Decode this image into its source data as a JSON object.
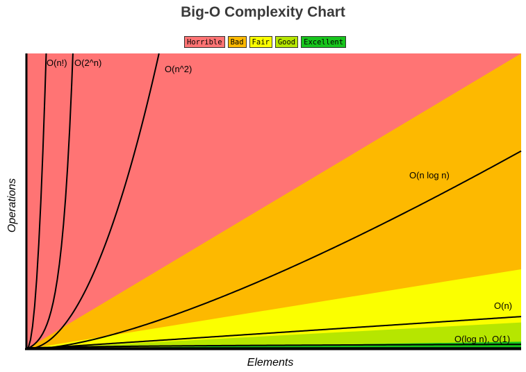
{
  "chart_data": {
    "type": "area",
    "title": "Big-O Complexity Chart",
    "xlabel": "Elements",
    "ylabel": "Operations",
    "legend_position": "top-center",
    "grid": false,
    "legend": [
      {
        "label": "Horrible",
        "color": "#ff7474"
      },
      {
        "label": "Bad",
        "color": "#fdb900"
      },
      {
        "label": "Fair",
        "color": "#fbff00"
      },
      {
        "label": "Good",
        "color": "#b6e600"
      },
      {
        "label": "Excellent",
        "color": "#17c41c"
      }
    ],
    "zones": [
      {
        "name": "Horrible",
        "color": "#ff7474",
        "upper_slope": null
      },
      {
        "name": "Bad",
        "color": "#fdb900",
        "upper_slope": 1.0
      },
      {
        "name": "Fair",
        "color": "#fbff00",
        "upper_slope": 0.27
      },
      {
        "name": "Good",
        "color": "#b6e600",
        "upper_slope": 0.09
      },
      {
        "name": "Excellent",
        "color": "#17c41c",
        "upper_slope": 0.025
      }
    ],
    "curves": [
      {
        "name": "O(1)",
        "label": "",
        "func": "constant"
      },
      {
        "name": "O(log n)",
        "label": "O(log n), O(1)",
        "func": "log"
      },
      {
        "name": "O(n)",
        "label": "O(n)",
        "func": "linear"
      },
      {
        "name": "O(n log n)",
        "label": "O(n log n)",
        "func": "nlogn"
      },
      {
        "name": "O(n^2)",
        "label": "O(n^2)",
        "func": "quadratic"
      },
      {
        "name": "O(2^n)",
        "label": "O(2^n)",
        "func": "exponential"
      },
      {
        "name": "O(n!)",
        "label": "O(n!)",
        "func": "factorial"
      }
    ]
  }
}
